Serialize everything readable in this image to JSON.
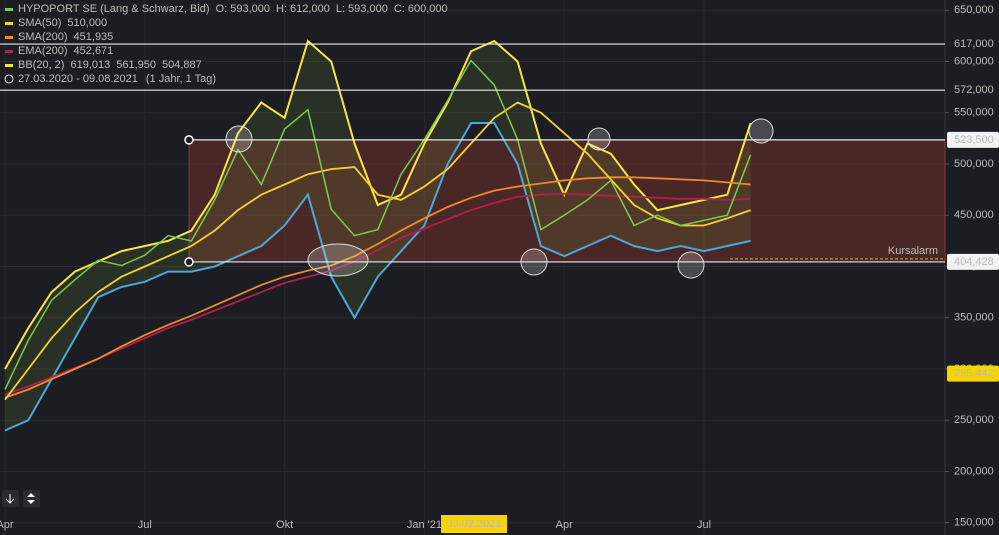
{
  "chart_data": {
    "type": "line",
    "date_range": "27.03.2020 - 09.08.2021",
    "period": "(1 Jahr, 1 Tag)",
    "cursor_label": "03.02.2021",
    "alarm_label": "Kursalarm",
    "categories": [
      "Apr",
      null,
      null,
      null,
      null,
      null,
      "Jul",
      null,
      null,
      null,
      null,
      null,
      "Okt",
      null,
      null,
      null,
      null,
      null,
      "Jan '21",
      null,
      null,
      null,
      null,
      null,
      "Apr",
      null,
      null,
      null,
      null,
      null,
      "Jul",
      null,
      null
    ],
    "ylim": [
      138000,
      660000
    ],
    "yticks": [
      {
        "value": 150000,
        "label": "150,000"
      },
      {
        "value": 200000,
        "label": "200,000"
      },
      {
        "value": 250000,
        "label": "250,000"
      },
      {
        "value": 300000,
        "label": "300,000"
      },
      {
        "value": 350000,
        "label": "350,000"
      },
      {
        "value": 400000,
        "label": "400,000"
      },
      {
        "value": 450000,
        "label": "450,000"
      },
      {
        "value": 500000,
        "label": "500,000"
      },
      {
        "value": 550000,
        "label": "550,000"
      },
      {
        "value": 600000,
        "label": "600,000"
      },
      {
        "value": 650000,
        "label": "650,000"
      }
    ],
    "grid": true,
    "series": [
      {
        "name": "HYPOPORT SE (Lang & Schwarz, Bid)",
        "color": "#7ec850",
        "legend_values": [
          "O: 593,000",
          "H: 612,000",
          "L: 593,000",
          "C: 600,000"
        ],
        "values": [
          280000,
          328000,
          367000,
          387000,
          406000,
          401000,
          411000,
          430000,
          425000,
          465000,
          514000,
          480000,
          534000,
          553000,
          456000,
          430000,
          436000,
          490000,
          524000,
          562000,
          601000,
          577000,
          524000,
          436000,
          450000,
          465000,
          484000,
          440000,
          450000,
          440000,
          445000,
          450000,
          509000
        ]
      },
      {
        "name": "SMA(50)",
        "color": "#f2d22e",
        "legend_values": [
          "510,000"
        ],
        "values": [
          270000,
          300000,
          330000,
          355000,
          375000,
          390000,
          400000,
          410000,
          420000,
          435000,
          455000,
          470000,
          480000,
          490000,
          495000,
          497000,
          470000,
          465000,
          478000,
          495000,
          520000,
          545000,
          560000,
          550000,
          530000,
          510000,
          485000,
          460000,
          447000,
          440000,
          440000,
          447000,
          455000
        ]
      },
      {
        "name": "SMA(200)",
        "color": "#f08a24",
        "legend_values": [
          "451,935"
        ],
        "values": [
          272000,
          280000,
          290000,
          300000,
          310000,
          322000,
          333000,
          343000,
          352000,
          362000,
          372000,
          382000,
          390000,
          396000,
          401000,
          410000,
          422000,
          435000,
          447000,
          458000,
          467000,
          474000,
          478000,
          481000,
          484000,
          486000,
          487000,
          487000,
          486000,
          485000,
          484000,
          482000,
          480000
        ]
      },
      {
        "name": "EMA(200)",
        "color": "#b0204a",
        "legend_values": [
          "452,671"
        ],
        "values": [
          275000,
          283000,
          292000,
          301000,
          310000,
          320000,
          330000,
          340000,
          348000,
          357000,
          366000,
          375000,
          384000,
          390000,
          396000,
          405000,
          416000,
          428000,
          437000,
          446000,
          455000,
          462000,
          468000,
          470000,
          471000,
          470000,
          469000,
          468000,
          467000,
          466000,
          466000,
          465000,
          466000
        ]
      },
      {
        "name": "BB(20, 2)",
        "color": "#f5e642",
        "lower_color": "#4aa8d8",
        "legend_values": [
          "619,013",
          "561,950",
          "504,887"
        ],
        "values": [
          300000,
          340000,
          375000,
          395000,
          405000,
          415000,
          420000,
          425000,
          435000,
          470000,
          530000,
          560000,
          545000,
          620000,
          600000,
          520000,
          460000,
          470000,
          520000,
          560000,
          610000,
          620000,
          600000,
          520000,
          470000,
          520000,
          510000,
          480000,
          455000,
          460000,
          465000,
          470000,
          540000
        ],
        "lower": [
          240000,
          250000,
          290000,
          330000,
          370000,
          380000,
          385000,
          395000,
          395000,
          400000,
          410000,
          420000,
          440000,
          470000,
          390000,
          350000,
          390000,
          415000,
          440000,
          500000,
          540000,
          540000,
          500000,
          420000,
          410000,
          420000,
          430000,
          420000,
          415000,
          420000,
          415000,
          420000,
          425000
        ]
      }
    ],
    "levels": [
      {
        "value": 617000,
        "label": "617,000"
      },
      {
        "value": 572000,
        "label": "572,000"
      },
      {
        "value": 523500,
        "label": "523,500"
      },
      {
        "value": 404428,
        "label": "404,428"
      }
    ],
    "tags": [
      {
        "value": 295442,
        "label": "295,442",
        "color": "#f5d400"
      }
    ]
  }
}
